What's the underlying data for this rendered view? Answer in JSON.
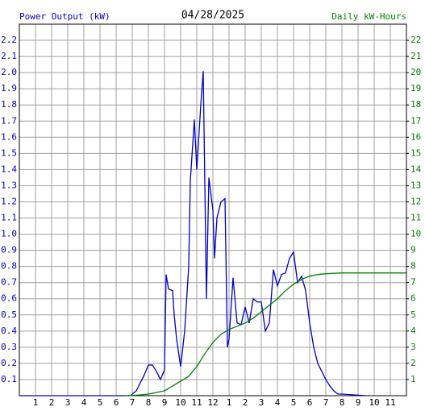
{
  "chart_data": {
    "type": "line",
    "title": "04/28/2025",
    "y_label": "Power Output (kW)",
    "y2_label": "Daily kW-Hours",
    "xlim": [
      0,
      24
    ],
    "xticks": [
      1,
      2,
      3,
      4,
      5,
      6,
      7,
      8,
      9,
      10,
      11,
      12,
      {
        "value": 13,
        "label": "1"
      },
      {
        "value": 14,
        "label": "2"
      },
      {
        "value": 15,
        "label": "3"
      },
      {
        "value": 16,
        "label": "4"
      },
      {
        "value": 17,
        "label": "5"
      },
      {
        "value": 18,
        "label": "6"
      },
      {
        "value": 19,
        "label": "7"
      },
      {
        "value": 20,
        "label": "8"
      },
      {
        "value": 21,
        "label": "9"
      },
      {
        "value": 22,
        "label": "10"
      },
      {
        "value": 23,
        "label": "11"
      }
    ],
    "ylim": [
      0,
      2.3
    ],
    "yticks": [
      0.1,
      0.2,
      0.3,
      0.4,
      0.5,
      0.6,
      0.7,
      0.8,
      0.9,
      {
        "value": 1,
        "label": "1.0"
      },
      1.1,
      1.2,
      1.3,
      1.4,
      1.5,
      1.6,
      1.7,
      1.8,
      1.9,
      {
        "value": 2,
        "label": "2.0"
      },
      2.1,
      2.2
    ],
    "y2lim": [
      0,
      23
    ],
    "y2ticks": [
      1,
      2,
      3,
      4,
      5,
      6,
      7,
      8,
      9,
      10,
      11,
      12,
      13,
      14,
      15,
      16,
      17,
      18,
      19,
      20,
      21,
      22
    ],
    "grid": true,
    "series": [
      {
        "color": "#0000c0",
        "x": [
          0,
          6.9,
          7,
          7.25,
          7.5,
          7.75,
          8,
          8.25,
          8.5,
          8.75,
          9,
          9.1,
          9.25,
          9.5,
          9.6,
          9.75,
          10,
          10.25,
          10.5,
          10.6,
          10.85,
          11,
          11.25,
          11.4,
          11.6,
          11.75,
          12,
          12.1,
          12.25,
          12.5,
          12.75,
          12.9,
          13,
          13.25,
          13.5,
          13.75,
          14,
          14.25,
          14.5,
          14.75,
          15,
          15.25,
          15.5,
          15.75,
          16,
          16.25,
          16.5,
          16.75,
          17,
          17.25,
          17.5,
          17.75,
          18,
          18.25,
          18.5,
          18.75,
          19,
          19.25,
          19.5,
          19.75,
          20,
          21.5
        ],
        "values": [
          0,
          0,
          0.01,
          0.03,
          0.08,
          0.13,
          0.19,
          0.19,
          0.15,
          0.1,
          0.16,
          0.75,
          0.66,
          0.65,
          0.5,
          0.35,
          0.18,
          0.4,
          0.8,
          1.33,
          1.71,
          1.4,
          1.8,
          2.01,
          0.6,
          1.35,
          1.15,
          0.85,
          1.1,
          1.2,
          1.22,
          0.3,
          0.35,
          0.73,
          0.45,
          0.44,
          0.55,
          0.45,
          0.6,
          0.58,
          0.58,
          0.4,
          0.45,
          0.78,
          0.68,
          0.75,
          0.76,
          0.85,
          0.89,
          0.7,
          0.74,
          0.65,
          0.45,
          0.3,
          0.2,
          0.15,
          0.1,
          0.06,
          0.03,
          0.01,
          0.01,
          0
        ]
      },
      {
        "color": "#008000",
        "axis": "y2",
        "x": [
          6.5,
          7,
          7.5,
          8,
          8.5,
          9,
          9.5,
          10,
          10.5,
          11,
          11.5,
          12,
          12.5,
          13,
          13.5,
          14,
          14.5,
          15,
          15.5,
          16,
          16.5,
          17,
          17.5,
          18,
          18.5,
          19,
          20,
          24
        ],
        "values": [
          0,
          0.02,
          0.05,
          0.1,
          0.2,
          0.3,
          0.6,
          0.9,
          1.2,
          1.8,
          2.6,
          3.3,
          3.8,
          4.1,
          4.3,
          4.5,
          4.8,
          5.2,
          5.6,
          6.0,
          6.5,
          6.9,
          7.2,
          7.4,
          7.5,
          7.55,
          7.6,
          7.6
        ]
      }
    ]
  }
}
